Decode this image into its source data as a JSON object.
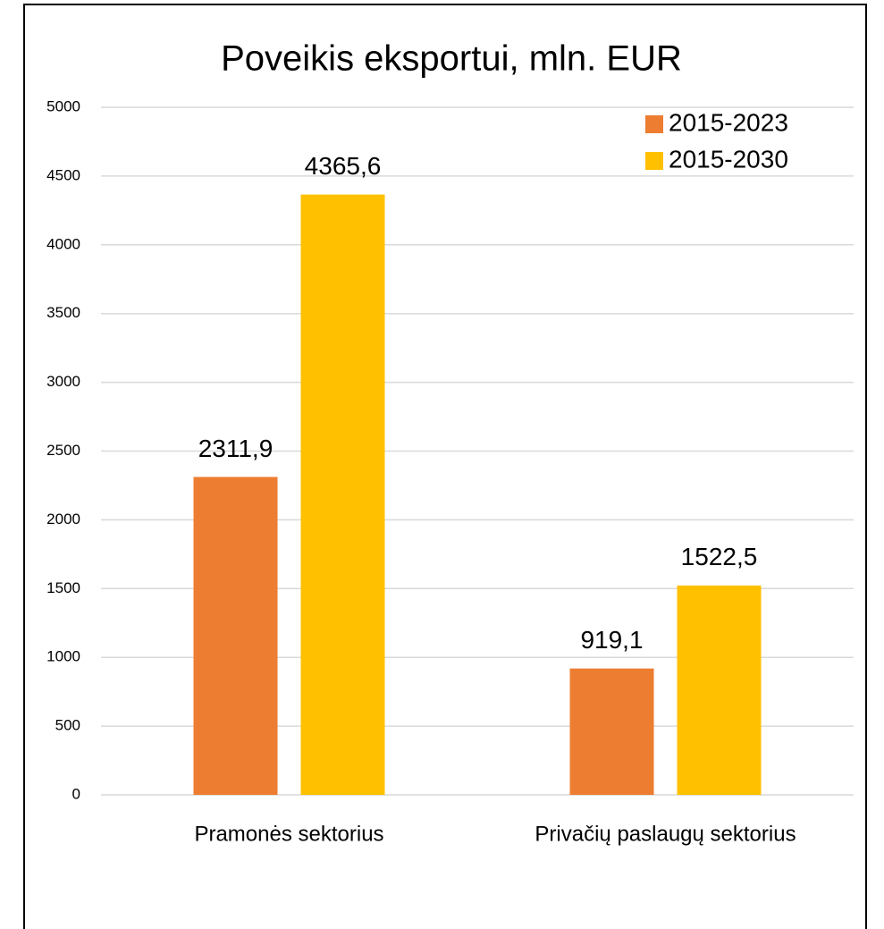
{
  "chart_data": {
    "type": "bar",
    "title": "Poveikis eksportui, mln. EUR",
    "categories": [
      "Pramonės sektorius",
      "Privačių paslaugų sektorius"
    ],
    "series": [
      {
        "name": "2015-2023",
        "color": "#ed7d31",
        "values": [
          2311.9,
          919.1
        ],
        "value_labels": [
          "2311,9",
          "919,1"
        ]
      },
      {
        "name": "2015-2030",
        "color": "#ffc000",
        "values": [
          4365.6,
          1522.5
        ],
        "value_labels": [
          "4365,6",
          "1522,5"
        ]
      }
    ],
    "ylim": [
      0,
      5000
    ],
    "yticks": [
      0,
      500,
      1000,
      1500,
      2000,
      2500,
      3000,
      3500,
      4000,
      4500,
      5000
    ],
    "grid": true,
    "legend": "top-right"
  }
}
